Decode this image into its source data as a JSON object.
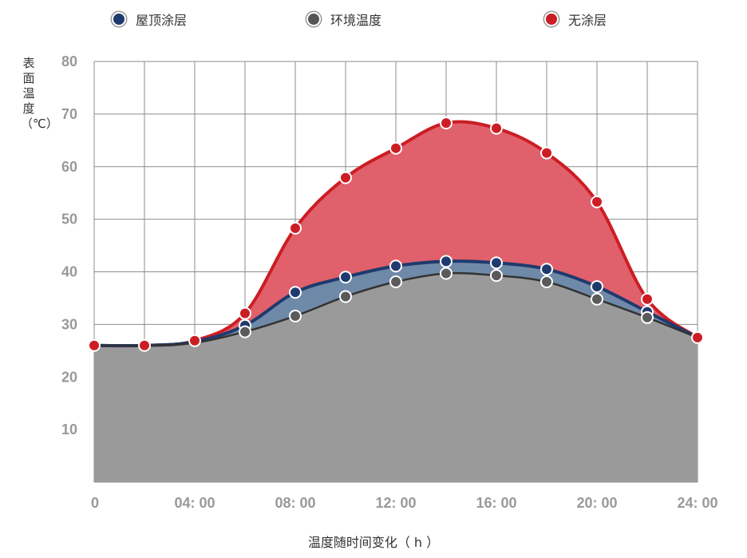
{
  "chart_data": {
    "type": "area",
    "x": [
      "0",
      "02:00",
      "04:00",
      "06:00",
      "08:00",
      "10:00",
      "12:00",
      "14:00",
      "16:00",
      "18:00",
      "20:00",
      "22:00",
      "24:00"
    ],
    "x_tick_labels": [
      "0",
      "04: 00",
      "08: 00",
      "12: 00",
      "16: 00",
      "20: 00",
      "24: 00"
    ],
    "xlabel": "温度随时间变化（ h ）",
    "ylabel": "表面温度（℃）",
    "ylim": [
      0,
      80
    ],
    "y_ticks": [
      "10",
      "20",
      "30",
      "40",
      "50",
      "60",
      "70",
      "80"
    ],
    "grid": true,
    "legend": "top",
    "series": [
      {
        "name": "屋顶涂层",
        "color": "#1f3a6e",
        "fill": "#6f8aa8",
        "values": [
          26,
          26,
          26.7,
          29.8,
          36.1,
          39,
          41.1,
          42,
          41.7,
          40.5,
          37.2,
          32.4,
          27.5
        ]
      },
      {
        "name": "环境温度",
        "color": "#333333",
        "fill": "#9a9a9a",
        "values": [
          26,
          26,
          26.5,
          28.6,
          31.6,
          35.3,
          38.1,
          39.7,
          39.3,
          38.1,
          34.8,
          31.3,
          27.5
        ]
      },
      {
        "name": "无涂层",
        "color": "#cc1d24",
        "fill": "#e0606b",
        "values": [
          26,
          26,
          26.9,
          32.1,
          48.3,
          57.9,
          63.5,
          68.3,
          67.3,
          62.6,
          53.3,
          34.8,
          27.5
        ]
      }
    ]
  },
  "legend": {
    "coating": "屋顶涂层",
    "ambient": "环境温度",
    "none": "无涂层"
  }
}
